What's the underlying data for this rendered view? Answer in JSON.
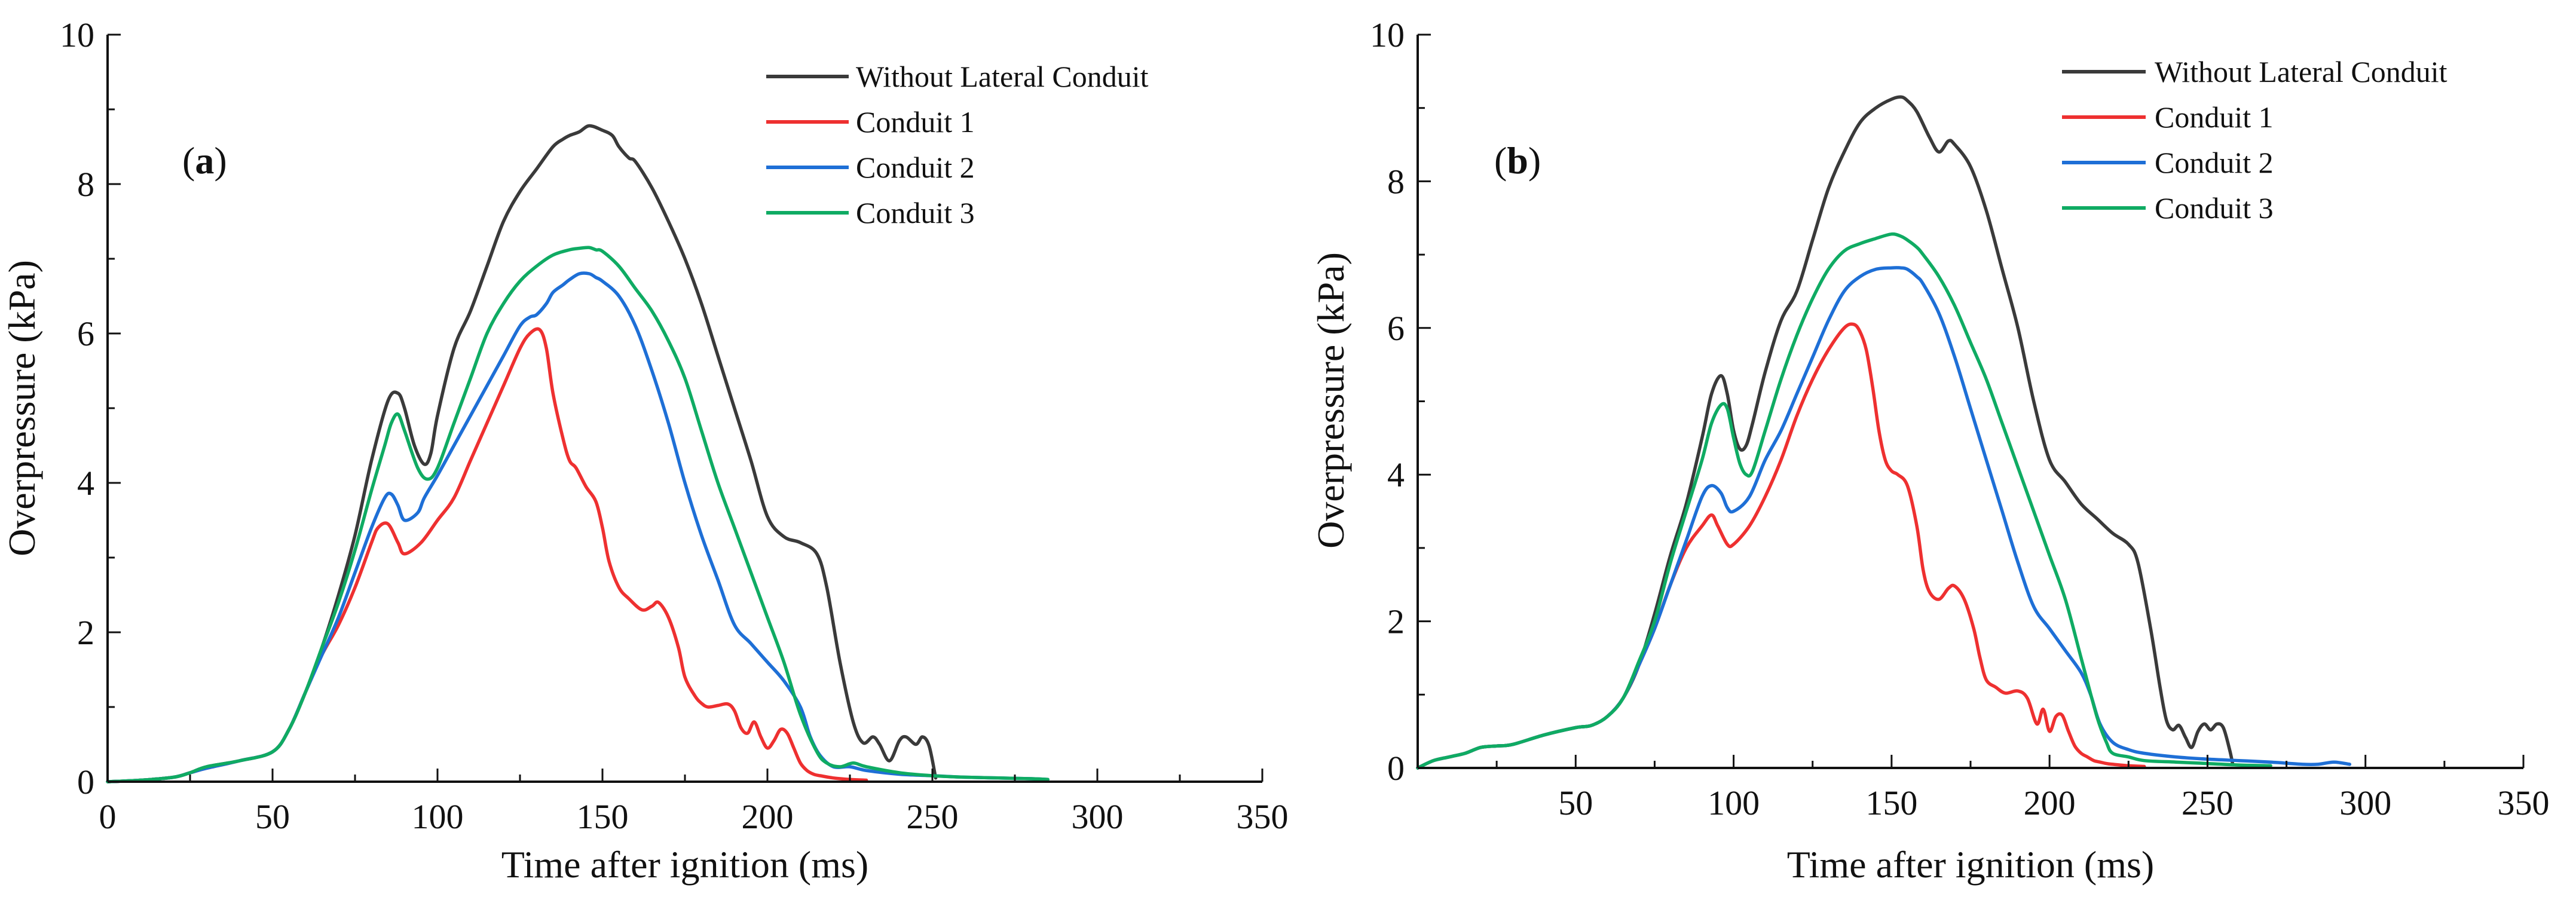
{
  "chart_data": [
    {
      "type": "line",
      "panel_label": "a",
      "title": "",
      "xlabel": "Time after ignition (ms)",
      "ylabel": "Overpressure (kPa)",
      "xlim": [
        0,
        350
      ],
      "ylim": [
        0,
        10
      ],
      "xticks": [
        0,
        50,
        100,
        150,
        200,
        250,
        300,
        350
      ],
      "yticks": [
        0,
        2,
        4,
        6,
        8,
        10
      ],
      "legend_position": "top-right",
      "series": [
        {
          "name": "Without Lateral Conduit",
          "color": "#3a3a3a",
          "x": [
            0,
            10,
            20,
            25,
            30,
            40,
            50,
            55,
            60,
            65,
            70,
            75,
            80,
            85,
            88,
            90,
            93,
            96,
            98,
            100,
            105,
            110,
            115,
            120,
            125,
            130,
            135,
            138,
            140,
            143,
            146,
            150,
            153,
            155,
            158,
            160,
            165,
            170,
            175,
            180,
            185,
            190,
            195,
            200,
            205,
            210,
            215,
            218,
            222,
            226,
            229,
            232,
            234,
            237,
            240,
            242,
            245,
            247,
            249,
            251
          ],
          "y": [
            0,
            0.02,
            0.06,
            0.12,
            0.2,
            0.28,
            0.4,
            0.7,
            1.2,
            1.8,
            2.5,
            3.3,
            4.3,
            5.1,
            5.2,
            5.0,
            4.5,
            4.25,
            4.4,
            4.9,
            5.8,
            6.3,
            6.9,
            7.5,
            7.9,
            8.2,
            8.5,
            8.6,
            8.65,
            8.7,
            8.78,
            8.72,
            8.65,
            8.5,
            8.35,
            8.3,
            7.95,
            7.5,
            7.0,
            6.4,
            5.7,
            5.0,
            4.3,
            3.55,
            3.28,
            3.2,
            3.05,
            2.6,
            1.6,
            0.8,
            0.52,
            0.6,
            0.5,
            0.28,
            0.55,
            0.6,
            0.5,
            0.6,
            0.48,
            0.05
          ]
        },
        {
          "name": "Conduit 1",
          "color": "#ee3030",
          "x": [
            0,
            10,
            20,
            25,
            30,
            40,
            50,
            55,
            60,
            65,
            70,
            75,
            80,
            82,
            85,
            88,
            90,
            95,
            100,
            105,
            110,
            115,
            120,
            125,
            128,
            131,
            133,
            135,
            138,
            140,
            142,
            145,
            148,
            150,
            152,
            155,
            158,
            162,
            165,
            167,
            170,
            173,
            175,
            178,
            180,
            182,
            185,
            188,
            190,
            192,
            194,
            196,
            198,
            200,
            202,
            204,
            206,
            208,
            210,
            212,
            214,
            216,
            220,
            225,
            230
          ],
          "y": [
            0,
            0.02,
            0.06,
            0.12,
            0.18,
            0.28,
            0.4,
            0.7,
            1.2,
            1.7,
            2.1,
            2.6,
            3.2,
            3.4,
            3.45,
            3.2,
            3.05,
            3.2,
            3.5,
            3.8,
            4.3,
            4.8,
            5.3,
            5.8,
            6.0,
            6.05,
            5.8,
            5.2,
            4.6,
            4.3,
            4.2,
            3.95,
            3.75,
            3.4,
            2.95,
            2.6,
            2.45,
            2.3,
            2.35,
            2.4,
            2.2,
            1.8,
            1.4,
            1.15,
            1.05,
            1.0,
            1.02,
            1.04,
            0.95,
            0.72,
            0.65,
            0.8,
            0.6,
            0.45,
            0.55,
            0.7,
            0.65,
            0.45,
            0.25,
            0.15,
            0.1,
            0.08,
            0.05,
            0.03,
            0.02
          ]
        },
        {
          "name": "Conduit 2",
          "color": "#1e6fd6",
          "x": [
            0,
            10,
            20,
            25,
            30,
            40,
            50,
            55,
            60,
            65,
            70,
            75,
            80,
            84,
            86,
            88,
            90,
            94,
            96,
            100,
            105,
            110,
            115,
            120,
            125,
            128,
            130,
            133,
            135,
            138,
            140,
            143,
            146,
            148,
            150,
            155,
            160,
            165,
            170,
            175,
            180,
            185,
            190,
            195,
            200,
            205,
            210,
            213,
            216,
            220,
            225,
            230,
            240,
            250,
            260,
            270,
            280,
            285
          ],
          "y": [
            0,
            0.02,
            0.06,
            0.12,
            0.18,
            0.28,
            0.4,
            0.7,
            1.2,
            1.7,
            2.2,
            2.8,
            3.4,
            3.8,
            3.85,
            3.7,
            3.5,
            3.6,
            3.8,
            4.1,
            4.5,
            4.9,
            5.3,
            5.7,
            6.1,
            6.22,
            6.25,
            6.4,
            6.55,
            6.65,
            6.72,
            6.8,
            6.8,
            6.75,
            6.7,
            6.5,
            6.1,
            5.5,
            4.8,
            4.0,
            3.3,
            2.7,
            2.1,
            1.85,
            1.6,
            1.35,
            1.0,
            0.6,
            0.35,
            0.2,
            0.2,
            0.15,
            0.1,
            0.08,
            0.06,
            0.05,
            0.04,
            0.03
          ]
        },
        {
          "name": "Conduit 3",
          "color": "#0fab63",
          "x": [
            0,
            10,
            20,
            25,
            30,
            40,
            50,
            55,
            60,
            65,
            70,
            75,
            80,
            84,
            86,
            88,
            90,
            94,
            97,
            100,
            105,
            110,
            115,
            120,
            125,
            130,
            135,
            140,
            143,
            146,
            148,
            150,
            155,
            160,
            165,
            170,
            175,
            180,
            185,
            190,
            195,
            200,
            205,
            210,
            215,
            218,
            222,
            226,
            230,
            240,
            250,
            260,
            270,
            280,
            285
          ],
          "y": [
            0,
            0.02,
            0.06,
            0.12,
            0.2,
            0.28,
            0.4,
            0.7,
            1.2,
            1.8,
            2.4,
            3.1,
            3.9,
            4.5,
            4.8,
            4.92,
            4.7,
            4.2,
            4.05,
            4.2,
            4.8,
            5.4,
            6.0,
            6.4,
            6.7,
            6.9,
            7.05,
            7.12,
            7.14,
            7.15,
            7.12,
            7.1,
            6.9,
            6.6,
            6.3,
            5.9,
            5.4,
            4.7,
            4.0,
            3.4,
            2.8,
            2.2,
            1.6,
            0.9,
            0.4,
            0.25,
            0.2,
            0.25,
            0.2,
            0.12,
            0.08,
            0.06,
            0.05,
            0.04,
            0.03
          ]
        }
      ]
    },
    {
      "type": "line",
      "panel_label": "b",
      "title": "",
      "xlabel": "Time after ignition (ms)",
      "ylabel": "Overpressure (kPa)",
      "xlim": [
        0,
        350
      ],
      "ylim": [
        0,
        10
      ],
      "xticks": [
        50,
        100,
        150,
        200,
        250,
        300,
        350
      ],
      "yticks": [
        0,
        2,
        4,
        6,
        8,
        10
      ],
      "legend_position": "top-right",
      "series": [
        {
          "name": "Without Lateral Conduit",
          "color": "#3a3a3a",
          "x": [
            0,
            5,
            10,
            15,
            20,
            25,
            30,
            40,
            50,
            55,
            60,
            65,
            70,
            75,
            80,
            85,
            90,
            93,
            96,
            98,
            100,
            102,
            104,
            106,
            110,
            115,
            120,
            125,
            130,
            135,
            140,
            145,
            150,
            153,
            155,
            158,
            162,
            165,
            168,
            170,
            175,
            180,
            185,
            190,
            195,
            200,
            205,
            210,
            215,
            220,
            225,
            228,
            232,
            235,
            237,
            239,
            241,
            243,
            245,
            247,
            249,
            251,
            253,
            255,
            257,
            258
          ],
          "y": [
            0,
            0.1,
            0.15,
            0.2,
            0.28,
            0.3,
            0.32,
            0.45,
            0.55,
            0.58,
            0.7,
            0.95,
            1.4,
            2.1,
            2.9,
            3.6,
            4.5,
            5.1,
            5.35,
            5.1,
            4.6,
            4.35,
            4.4,
            4.7,
            5.4,
            6.1,
            6.5,
            7.2,
            7.9,
            8.4,
            8.8,
            9.0,
            9.12,
            9.15,
            9.1,
            8.95,
            8.6,
            8.4,
            8.55,
            8.5,
            8.2,
            7.6,
            6.8,
            6.0,
            5.0,
            4.2,
            3.9,
            3.6,
            3.4,
            3.2,
            3.05,
            2.8,
            1.9,
            1.1,
            0.65,
            0.52,
            0.58,
            0.42,
            0.28,
            0.5,
            0.6,
            0.52,
            0.6,
            0.55,
            0.25,
            0.05
          ]
        },
        {
          "name": "Conduit 1",
          "color": "#ee3030",
          "x": [
            0,
            5,
            10,
            15,
            20,
            25,
            30,
            40,
            50,
            55,
            60,
            65,
            70,
            75,
            80,
            85,
            90,
            93,
            95,
            98,
            100,
            105,
            110,
            115,
            120,
            125,
            130,
            135,
            138,
            140,
            142,
            144,
            146,
            148,
            150,
            152,
            155,
            158,
            160,
            162,
            165,
            168,
            170,
            173,
            176,
            178,
            180,
            183,
            186,
            190,
            193,
            196,
            198,
            200,
            202,
            204,
            206,
            208,
            210,
            212,
            214,
            216,
            218,
            220,
            225,
            230
          ],
          "y": [
            0,
            0.1,
            0.15,
            0.2,
            0.28,
            0.3,
            0.32,
            0.45,
            0.55,
            0.58,
            0.7,
            0.95,
            1.4,
            1.9,
            2.5,
            3.0,
            3.3,
            3.45,
            3.3,
            3.05,
            3.05,
            3.3,
            3.7,
            4.2,
            4.8,
            5.3,
            5.7,
            6.0,
            6.05,
            5.95,
            5.7,
            5.2,
            4.6,
            4.2,
            4.05,
            4.0,
            3.85,
            3.3,
            2.7,
            2.4,
            2.3,
            2.45,
            2.48,
            2.3,
            1.9,
            1.5,
            1.2,
            1.1,
            1.02,
            1.05,
            0.95,
            0.6,
            0.8,
            0.5,
            0.7,
            0.72,
            0.5,
            0.3,
            0.2,
            0.15,
            0.1,
            0.08,
            0.06,
            0.05,
            0.03,
            0.02
          ]
        },
        {
          "name": "Conduit 2",
          "color": "#1e6fd6",
          "x": [
            0,
            5,
            10,
            15,
            20,
            25,
            30,
            40,
            50,
            55,
            60,
            65,
            70,
            75,
            80,
            85,
            90,
            93,
            96,
            98,
            100,
            105,
            110,
            115,
            120,
            125,
            130,
            135,
            140,
            145,
            150,
            153,
            155,
            158,
            160,
            165,
            170,
            175,
            180,
            185,
            190,
            195,
            200,
            205,
            210,
            213,
            216,
            220,
            225,
            230,
            240,
            250,
            260,
            270,
            280,
            285,
            290,
            295
          ],
          "y": [
            0,
            0.1,
            0.15,
            0.2,
            0.28,
            0.3,
            0.32,
            0.45,
            0.55,
            0.58,
            0.7,
            0.95,
            1.4,
            1.9,
            2.5,
            3.1,
            3.7,
            3.85,
            3.75,
            3.55,
            3.5,
            3.7,
            4.2,
            4.6,
            5.1,
            5.6,
            6.1,
            6.5,
            6.7,
            6.8,
            6.82,
            6.82,
            6.8,
            6.7,
            6.6,
            6.2,
            5.6,
            4.9,
            4.2,
            3.5,
            2.8,
            2.2,
            1.9,
            1.6,
            1.3,
            1.0,
            0.6,
            0.35,
            0.25,
            0.2,
            0.15,
            0.12,
            0.1,
            0.08,
            0.05,
            0.05,
            0.08,
            0.05
          ]
        },
        {
          "name": "Conduit 3",
          "color": "#0fab63",
          "x": [
            0,
            5,
            10,
            15,
            20,
            25,
            30,
            40,
            50,
            55,
            60,
            65,
            70,
            75,
            80,
            85,
            90,
            93,
            96,
            98,
            100,
            102,
            104,
            106,
            110,
            115,
            120,
            125,
            130,
            135,
            140,
            145,
            150,
            153,
            155,
            158,
            160,
            165,
            170,
            175,
            180,
            185,
            190,
            195,
            200,
            205,
            210,
            215,
            218,
            220,
            225,
            230,
            240,
            250,
            260,
            270
          ],
          "y": [
            0,
            0.1,
            0.15,
            0.2,
            0.28,
            0.3,
            0.32,
            0.45,
            0.55,
            0.58,
            0.7,
            0.95,
            1.45,
            2.0,
            2.8,
            3.5,
            4.2,
            4.7,
            4.95,
            4.9,
            4.5,
            4.15,
            4.0,
            4.05,
            4.6,
            5.3,
            5.9,
            6.4,
            6.8,
            7.05,
            7.15,
            7.22,
            7.28,
            7.25,
            7.2,
            7.1,
            7.0,
            6.7,
            6.3,
            5.8,
            5.3,
            4.7,
            4.1,
            3.5,
            2.9,
            2.3,
            1.5,
            0.7,
            0.35,
            0.2,
            0.15,
            0.1,
            0.08,
            0.06,
            0.04,
            0.03
          ]
        }
      ]
    }
  ]
}
